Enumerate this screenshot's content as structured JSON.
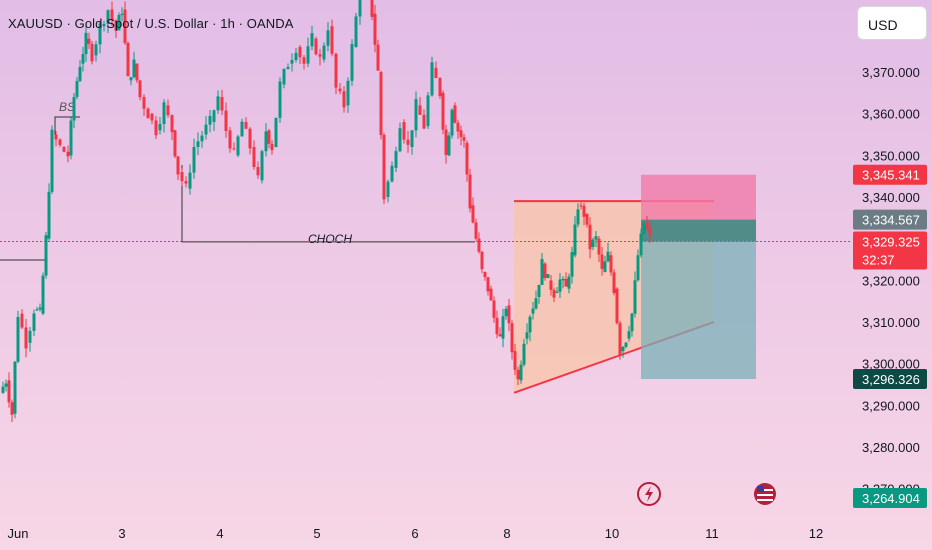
{
  "header": {
    "title": "XAUUSD · Gold Spot / U.S. Dollar · 1h · OANDA",
    "currency": "USD"
  },
  "colors": {
    "up": "#089981",
    "down": "#f23645",
    "grid_text": "#131722",
    "pattern_line": "#f23645",
    "pattern_fill": "#f8c4a8",
    "stop_zone": "#f07aa8",
    "target_zone": "#7ab0b8",
    "entry_bar": "#4d8a86"
  },
  "price_tags": {
    "stop": "3,345.341",
    "entry": "3,334.567",
    "current": "3,329.325",
    "countdown": "32:37",
    "target": "3,296.326",
    "bottom": "3,264.904"
  },
  "annotations": {
    "choch": "CHOCH",
    "bs": "BS"
  },
  "icons": {
    "event_1": "lightning-icon",
    "event_2": "us-flag-icon"
  },
  "chart_data": {
    "type": "candlestick",
    "title": "XAUUSD · Gold Spot / U.S. Dollar · 1h · OANDA",
    "y_axis": {
      "ticks": [
        3270,
        3280,
        3290,
        3300,
        3310,
        3320,
        3330,
        3340,
        3350,
        3360,
        3370
      ],
      "tick_labels": [
        "3,270.000",
        "3,280.000",
        "3,290.000",
        "3,300.000",
        "3,310.000",
        "3,320.000",
        "3,330.000",
        "3,340.000",
        "3,350.000",
        "3,360.000",
        "3,370.000"
      ],
      "range": [
        3261,
        3386
      ]
    },
    "x_axis": {
      "tick_labels": [
        "Jun",
        "3",
        "4",
        "5",
        "6",
        "8",
        "10",
        "11",
        "12"
      ]
    },
    "levels": {
      "choch": 3329,
      "stop": 3345.341,
      "entry": 3334.567,
      "current": 3329.325,
      "target": 3296.326
    },
    "wedge": {
      "upper": 3339,
      "lower_start": 3293,
      "lower_end": 3310
    },
    "key_points": [
      {
        "label": "BS",
        "price": 3361
      },
      {
        "label": "CHOCH",
        "price": 3329
      }
    ],
    "path": [
      [
        0,
        3293
      ],
      [
        6,
        3296
      ],
      [
        12,
        3288
      ],
      [
        18,
        3312
      ],
      [
        26,
        3305
      ],
      [
        34,
        3313
      ],
      [
        40,
        3312
      ],
      [
        46,
        3330
      ],
      [
        52,
        3355
      ],
      [
        60,
        3352
      ],
      [
        68,
        3350
      ],
      [
        74,
        3364
      ],
      [
        80,
        3372
      ],
      [
        86,
        3378
      ],
      [
        92,
        3374
      ],
      [
        100,
        3381
      ],
      [
        108,
        3385
      ],
      [
        116,
        3380
      ],
      [
        122,
        3385
      ],
      [
        128,
        3368
      ],
      [
        134,
        3372
      ],
      [
        140,
        3364
      ],
      [
        148,
        3360
      ],
      [
        156,
        3356
      ],
      [
        164,
        3362
      ],
      [
        172,
        3356
      ],
      [
        178,
        3346
      ],
      [
        186,
        3342
      ],
      [
        194,
        3352
      ],
      [
        202,
        3355
      ],
      [
        210,
        3358
      ],
      [
        218,
        3364
      ],
      [
        226,
        3356
      ],
      [
        234,
        3350
      ],
      [
        242,
        3358
      ],
      [
        250,
        3352
      ],
      [
        258,
        3344
      ],
      [
        266,
        3356
      ],
      [
        272,
        3352
      ],
      [
        280,
        3367
      ],
      [
        288,
        3372
      ],
      [
        296,
        3376
      ],
      [
        304,
        3372
      ],
      [
        312,
        3378
      ],
      [
        320,
        3373
      ],
      [
        328,
        3381
      ],
      [
        336,
        3366
      ],
      [
        344,
        3362
      ],
      [
        352,
        3376
      ],
      [
        360,
        3390
      ],
      [
        366,
        3392
      ],
      [
        372,
        3384
      ],
      [
        378,
        3370
      ],
      [
        384,
        3340
      ],
      [
        392,
        3347
      ],
      [
        400,
        3358
      ],
      [
        408,
        3352
      ],
      [
        416,
        3362
      ],
      [
        424,
        3357
      ],
      [
        432,
        3371
      ],
      [
        440,
        3365
      ],
      [
        446,
        3350
      ],
      [
        452,
        3362
      ],
      [
        458,
        3356
      ],
      [
        464,
        3353
      ],
      [
        470,
        3338
      ],
      [
        476,
        3330
      ],
      [
        482,
        3322
      ],
      [
        488,
        3318
      ],
      [
        494,
        3311
      ],
      [
        500,
        3306
      ],
      [
        506,
        3314
      ],
      [
        512,
        3303
      ],
      [
        518,
        3296
      ],
      [
        524,
        3306
      ],
      [
        530,
        3312
      ],
      [
        536,
        3316
      ],
      [
        542,
        3324
      ],
      [
        548,
        3320
      ],
      [
        554,
        3317
      ],
      [
        560,
        3320
      ],
      [
        566,
        3318
      ],
      [
        572,
        3326
      ],
      [
        578,
        3338
      ],
      [
        584,
        3336
      ],
      [
        590,
        3328
      ],
      [
        596,
        3330
      ],
      [
        602,
        3322
      ],
      [
        608,
        3326
      ],
      [
        614,
        3318
      ],
      [
        620,
        3303
      ],
      [
        626,
        3306
      ],
      [
        632,
        3312
      ],
      [
        638,
        3326
      ],
      [
        644,
        3334
      ],
      [
        650,
        3330
      ]
    ]
  }
}
